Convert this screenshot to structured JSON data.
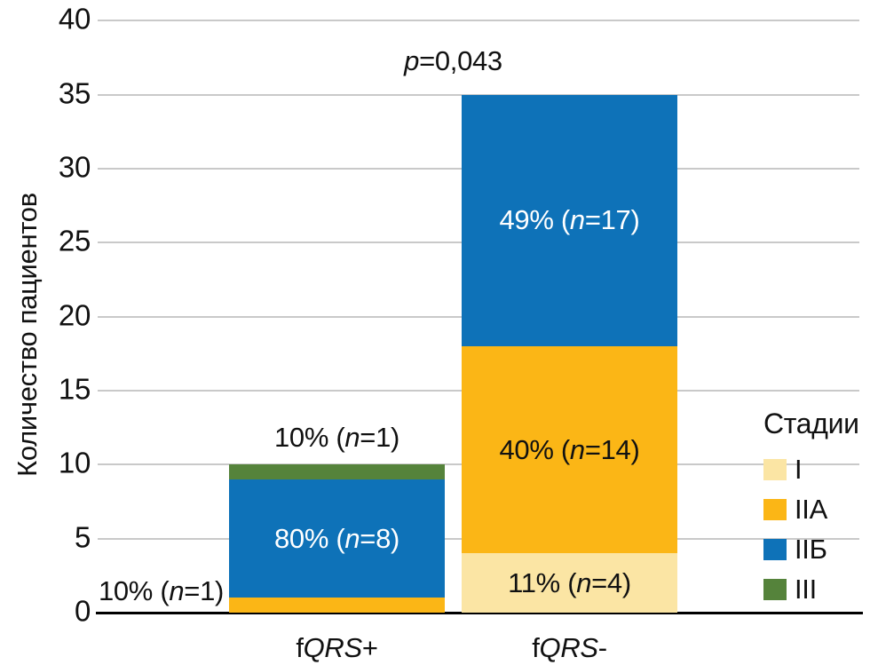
{
  "chart_data": {
    "type": "stacked_bar",
    "title": "",
    "ylabel": "Количество пациентов",
    "xlabel": "",
    "ylim": [
      0,
      40
    ],
    "yticks": [
      0,
      5,
      10,
      15,
      20,
      25,
      30,
      35,
      40
    ],
    "grid": "horizontal",
    "legend_position": "right",
    "categories": [
      "fQRS+",
      "fQRS-"
    ],
    "series": [
      {
        "name": "I",
        "values": [
          0,
          4
        ]
      },
      {
        "name": "IIA",
        "values": [
          1,
          14
        ]
      },
      {
        "name": "IIБ",
        "values": [
          8,
          17
        ]
      },
      {
        "name": "III",
        "values": [
          1,
          0
        ]
      }
    ],
    "annotation": {
      "text": "p=0,043",
      "variable": "p",
      "rest": "=0,043"
    },
    "bars": [
      {
        "category": {
          "text": "fQRS+",
          "prefix": "f",
          "italic": "QRS",
          "suffix": "+"
        },
        "segments": [
          {
            "stage": "IIA",
            "value": 1,
            "label": {
              "text": "10% (n=1)",
              "pct": "10%",
              "n": "1"
            },
            "placement": "outside-left",
            "label_color": "#111111"
          },
          {
            "stage": "IIБ",
            "value": 8,
            "label": {
              "text": "80% (n=8)",
              "pct": "80%",
              "n": "8"
            },
            "placement": "inside",
            "label_color": "#ffffff"
          },
          {
            "stage": "III",
            "value": 1,
            "label": {
              "text": "10% (n=1)",
              "pct": "10%",
              "n": "1"
            },
            "placement": "outside-top",
            "label_color": "#111111"
          }
        ]
      },
      {
        "category": {
          "text": "fQRS-",
          "prefix": "f",
          "italic": "QRS",
          "suffix": "-"
        },
        "segments": [
          {
            "stage": "I",
            "value": 4,
            "label": {
              "text": "11% (n=4)",
              "pct": "11%",
              "n": "4"
            },
            "placement": "inside",
            "label_color": "#111111"
          },
          {
            "stage": "IIA",
            "value": 14,
            "label": {
              "text": "40% (n=14)",
              "pct": "40%",
              "n": "14"
            },
            "placement": "inside",
            "label_color": "#111111"
          },
          {
            "stage": "IIБ",
            "value": 17,
            "label": {
              "text": "49% (n=17)",
              "pct": "49%",
              "n": "17"
            },
            "placement": "inside",
            "label_color": "#ffffff"
          }
        ]
      }
    ],
    "legend": {
      "title": "Стадии",
      "items": [
        {
          "label": "I",
          "color": "#fbe5a4"
        },
        {
          "label": "IIA",
          "color": "#fbb616"
        },
        {
          "label": "IIБ",
          "color": "#0e72b8"
        },
        {
          "label": "III",
          "color": "#55833b"
        }
      ]
    },
    "grid_color": "#c9c9c9",
    "axis_color": "#000000",
    "text_color": "#111111"
  }
}
